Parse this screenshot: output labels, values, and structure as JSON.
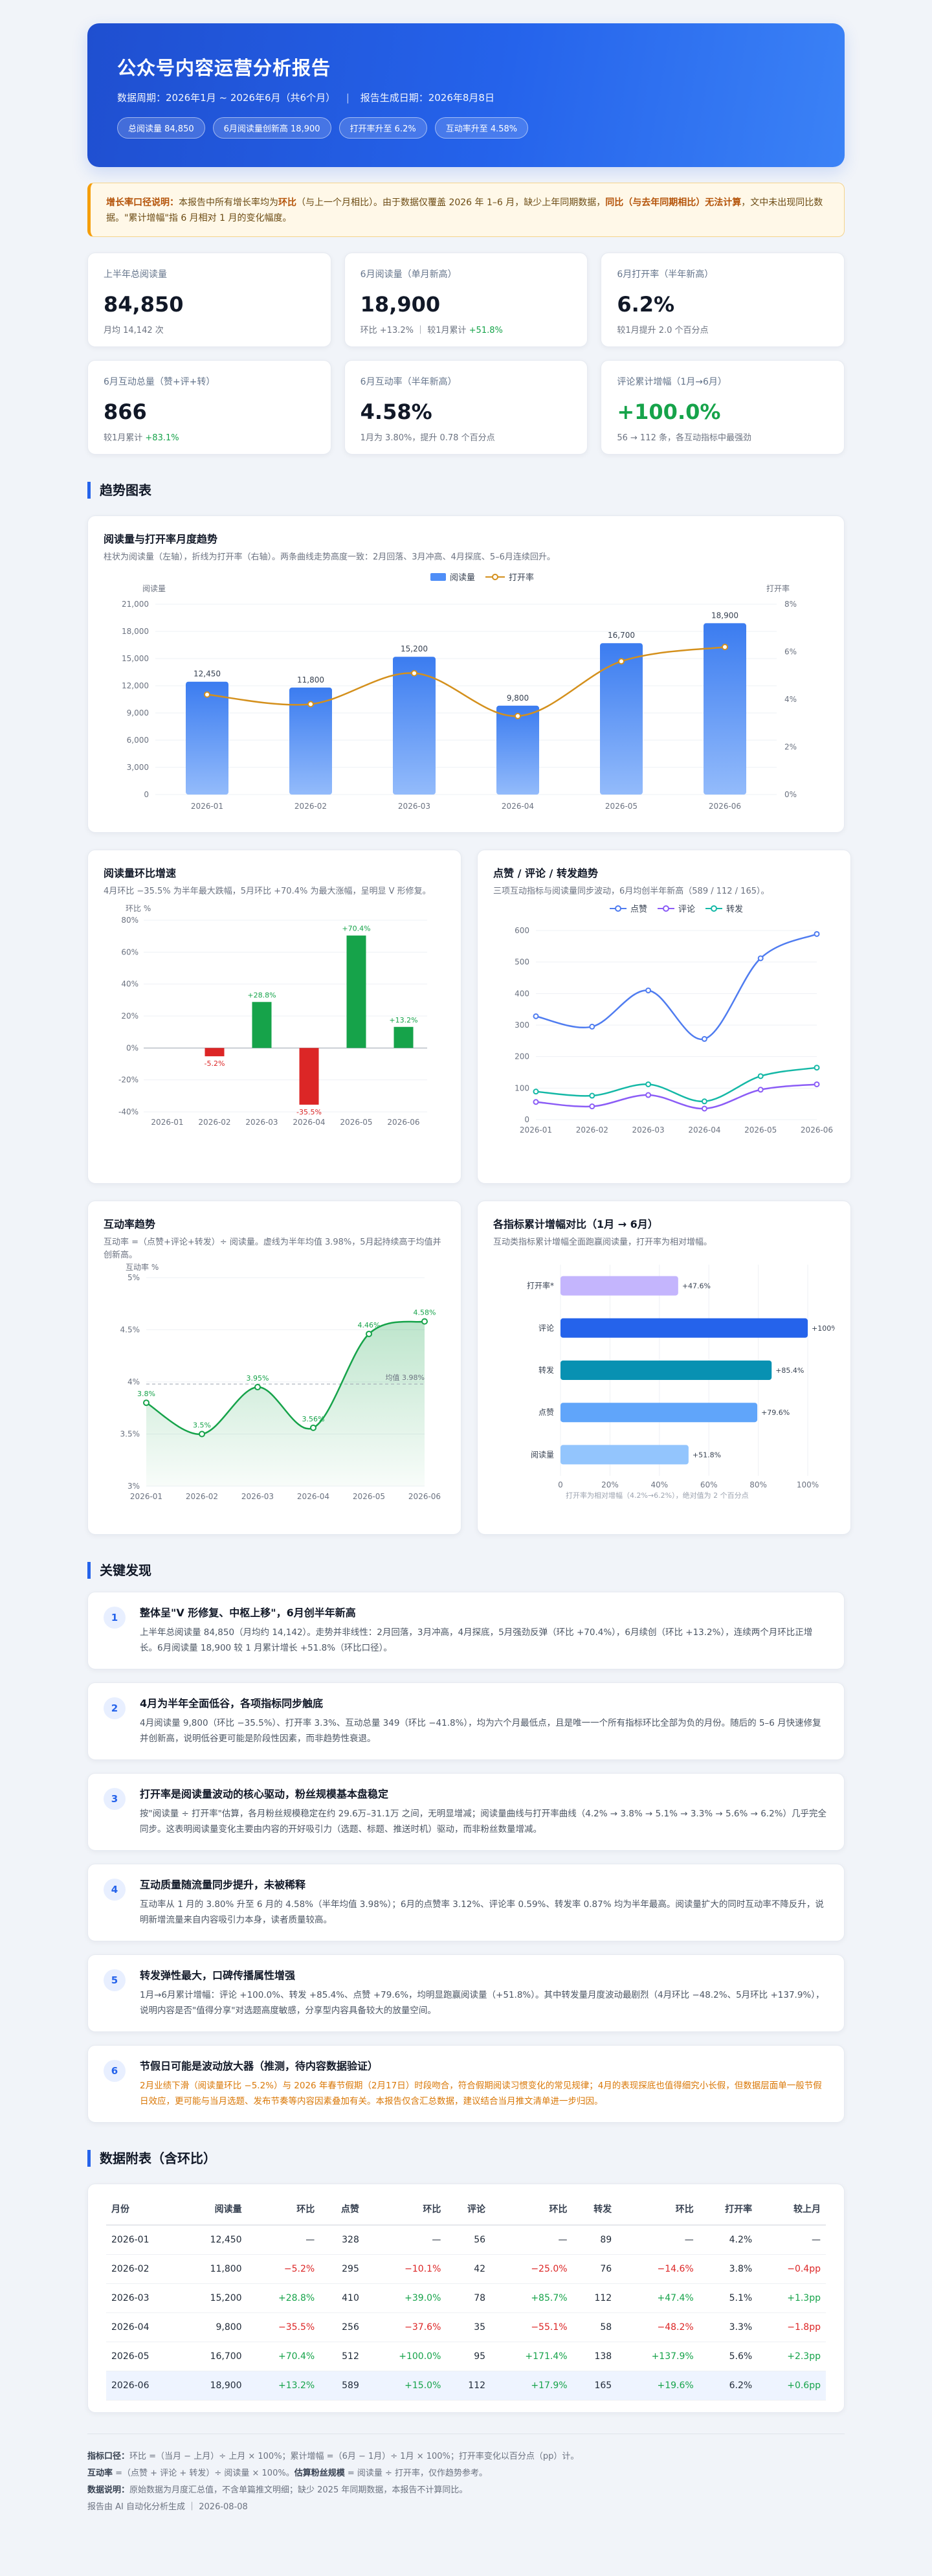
{
  "header": {
    "title": "公众号内容运营分析报告",
    "period": "数据周期：2026年1月 ~ 2026年6月（共6个月）",
    "generated": "报告生成日期：2026年8月8日",
    "pills": [
      "总阅读量 84,850",
      "6月阅读量创新高 18,900",
      "打开率升至 6.2%",
      "互动率升至 4.58%"
    ]
  },
  "note": {
    "lead": "增长率口径说明：",
    "text1": "本报告中所有增长率均为",
    "bold1": "环比",
    "text2": "（与上一个月相比）。由于数据仅覆盖 2026 年 1–6 月，缺少上年同期数据，",
    "bold2": "同比（与去年同期相比）无法计算",
    "text3": "，文中未出现同比数据。\"累计增幅\"指 6 月相对 1 月的变化幅度。"
  },
  "kpis": [
    {
      "label": "上半年总阅读量",
      "value": "84,850",
      "sub": "月均 14,142 次",
      "sub_green": ""
    },
    {
      "label": "6月阅读量（单月新高）",
      "value": "18,900",
      "sub": "环比 +13.2% ｜ 较1月累计 ",
      "sub_green": "+51.8%"
    },
    {
      "label": "6月打开率（半年新高）",
      "value": "6.2%",
      "sub": "较1月提升 2.0 个百分点",
      "sub_green": ""
    },
    {
      "label": "6月互动总量（赞+评+转）",
      "value": "866",
      "sub": "较1月累计 ",
      "sub_green": "+83.1%"
    },
    {
      "label": "6月互动率（半年新高）",
      "value": "4.58%",
      "sub": "1月为 3.80%，提升 0.78 个百分点",
      "sub_green": ""
    },
    {
      "label": "评论累计增幅（1月→6月）",
      "value": "+100.0%",
      "sub": "56 → 112 条，各互动指标中最强劲",
      "sub_green": ""
    }
  ],
  "sections": {
    "trend": "趋势图表",
    "findings": "关键发现",
    "table": "数据附表（含环比）"
  },
  "chart1": {
    "title": "阅读量与打开率月度趋势",
    "desc": "柱状为阅读量（左轴），折线为打开率（右轴）。两条曲线走势高度一致：2月回落、3月冲高、4月探底、5–6月连续回升。",
    "legend": [
      "阅读量",
      "打开率"
    ],
    "yl_label": "阅读量",
    "yr_label": "打开率"
  },
  "chart2": {
    "title": "阅读量环比增速",
    "desc": "4月环比 −35.5% 为半年最大跌幅，5月环比 +70.4% 为最大涨幅，呈明显 V 形修复。",
    "ylabel": "环比 %"
  },
  "chart3": {
    "title": "点赞 / 评论 / 转发趋势",
    "desc": "三项互动指标与阅读量同步波动，6月均创半年新高（589 / 112 / 165）。",
    "legend": [
      "点赞",
      "评论",
      "转发"
    ]
  },
  "chart4": {
    "title": "互动率趋势",
    "desc": "互动率 =（点赞+评论+转发）÷ 阅读量。虚线为半年均值 3.98%，5月起持续高于均值并创新高。",
    "ylabel": "互动率 %",
    "avg_label": "均值 3.98%"
  },
  "chart5": {
    "title": "各指标累计增幅对比（1月 → 6月）",
    "desc": "互动类指标累计增幅全面跑赢阅读量，打开率为相对增幅。",
    "footnote": "打开率为相对增幅（4.2%→6.2%），绝对值为 2 个百分点"
  },
  "chart_data": [
    {
      "type": "bar",
      "title": "阅读量与打开率月度趋势",
      "categories": [
        "2026-01",
        "2026-02",
        "2026-03",
        "2026-04",
        "2026-05",
        "2026-06"
      ],
      "series": [
        {
          "name": "阅读量",
          "type": "bar",
          "axis": "left",
          "values": [
            12450,
            11800,
            15200,
            9800,
            16700,
            18900
          ],
          "color": "#4f8ef7"
        },
        {
          "name": "打开率",
          "type": "line",
          "axis": "right",
          "values": [
            4.2,
            3.8,
            5.1,
            3.3,
            5.6,
            6.2
          ],
          "color": "#d4901c"
        }
      ],
      "ylim_left": [
        0,
        21000
      ],
      "yticks_left": [
        "0",
        "3,000",
        "6,000",
        "9,000",
        "12,000",
        "15,000",
        "18,000",
        "21,000"
      ],
      "ylim_right": [
        0,
        8
      ],
      "yticks_right": [
        "0%",
        "2%",
        "4%",
        "6%",
        "8%"
      ],
      "data_labels": [
        "12,450",
        "11,800",
        "15,200",
        "9,800",
        "16,700",
        "18,900"
      ],
      "ylabel": "阅读量",
      "ylabel_right": "打开率",
      "legend": "top-center",
      "grid": true
    },
    {
      "type": "bar",
      "title": "阅读量环比增速",
      "categories": [
        "2026-01",
        "2026-02",
        "2026-03",
        "2026-04",
        "2026-05",
        "2026-06"
      ],
      "values": [
        0,
        -5.2,
        28.8,
        -35.5,
        70.4,
        13.2
      ],
      "data_labels": [
        "",
        "-5.2%",
        "+28.8%",
        "-35.5%",
        "+70.4%",
        "+13.2%"
      ],
      "ylim": [
        -40,
        80
      ],
      "yticks": [
        "-40%",
        "-20%",
        "0%",
        "20%",
        "40%",
        "60%",
        "80%"
      ],
      "ylabel": "环比 %",
      "colors": {
        "up": "#16a34a",
        "down": "#dc2626"
      },
      "grid": true
    },
    {
      "type": "line",
      "title": "点赞 / 评论 / 转发趋势",
      "categories": [
        "2026-01",
        "2026-02",
        "2026-03",
        "2026-04",
        "2026-05",
        "2026-06"
      ],
      "series": [
        {
          "name": "点赞",
          "values": [
            328,
            295,
            410,
            256,
            512,
            589
          ],
          "color": "#4f7cf0"
        },
        {
          "name": "评论",
          "values": [
            56,
            42,
            78,
            35,
            95,
            112
          ],
          "color": "#8b5cf6"
        },
        {
          "name": "转发",
          "values": [
            89,
            76,
            112,
            58,
            138,
            165
          ],
          "color": "#14b8a6"
        }
      ],
      "ylim": [
        0,
        600
      ],
      "yticks": [
        "0",
        "100",
        "200",
        "300",
        "400",
        "500",
        "600"
      ],
      "legend": "top-center",
      "grid": true
    },
    {
      "type": "area",
      "title": "互动率趋势",
      "categories": [
        "2026-01",
        "2026-02",
        "2026-03",
        "2026-04",
        "2026-05",
        "2026-06"
      ],
      "values": [
        3.8,
        3.5,
        3.95,
        3.56,
        4.46,
        4.58
      ],
      "data_labels": [
        "3.8%",
        "3.5%",
        "3.95%",
        "3.56%",
        "4.46%",
        "4.58%"
      ],
      "ylim": [
        3,
        5
      ],
      "yticks": [
        "3%",
        "3.5%",
        "4%",
        "4.5%",
        "5%"
      ],
      "ylabel": "互动率 %",
      "average": 3.98,
      "color": "#16a34a",
      "grid": true
    },
    {
      "type": "bar",
      "orientation": "horizontal",
      "title": "各指标累计增幅对比（1月 → 6月）",
      "categories": [
        "打开率*",
        "评论",
        "转发",
        "点赞",
        "阅读量"
      ],
      "values": [
        47.6,
        100.0,
        85.4,
        79.6,
        51.8
      ],
      "data_labels": [
        "+47.6%",
        "+100%",
        "+85.4%",
        "+79.6%",
        "+51.8%"
      ],
      "colors": [
        "#c4b5fd",
        "#2563eb",
        "#0891b2",
        "#60a5fa",
        "#93c5fd"
      ],
      "xlim": [
        0,
        100
      ],
      "xticks": [
        "0",
        "20%",
        "40%",
        "60%",
        "80%",
        "100%"
      ],
      "grid": true
    }
  ],
  "findings": [
    {
      "num": "1",
      "title": "整体呈\"V 形修复、中枢上移\"，6月创半年新高",
      "text": "上半年总阅读量 84,850（月均约 14,142）。走势并非线性：2月回落，3月冲高，4月探底，5月强劲反弹（环比 +70.4%），6月续创（环比 +13.2%），连续两个月环比正增长。6月阅读量 18,900 较 1 月累计增长 +51.8%（环比口径）。",
      "warn": false
    },
    {
      "num": "2",
      "title": "4月为半年全面低谷，各项指标同步触底",
      "text": "4月阅读量 9,800（环比 −35.5%）、打开率 3.3%、互动总量 349（环比 −41.8%），均为六个月最低点，且是唯一一个所有指标环比全部为负的月份。随后的 5–6 月快速修复并创新高，说明低谷更可能是阶段性因素，而非趋势性衰退。",
      "warn": false
    },
    {
      "num": "3",
      "title": "打开率是阅读量波动的核心驱动，粉丝规模基本盘稳定",
      "text": "按\"阅读量 ÷ 打开率\"估算，各月粉丝规模稳定在约 29.6万–31.1万 之间，无明显增减；阅读量曲线与打开率曲线（4.2% → 3.8% → 5.1% → 3.3% → 5.6% → 6.2%）几乎完全同步。这表明阅读量变化主要由内容的开好吸引力（选题、标题、推送时机）驱动，而非粉丝数量增减。",
      "warn": false
    },
    {
      "num": "4",
      "title": "互动质量随流量同步提升，未被稀释",
      "text": "互动率从 1 月的 3.80% 升至 6 月的 4.58%（半年均值 3.98%）；6月的点赞率 3.12%、评论率 0.59%、转发率 0.87% 均为半年最高。阅读量扩大的同时互动率不降反升，说明新增流量来自内容吸引力本身，读者质量较高。",
      "warn": false
    },
    {
      "num": "5",
      "title": "转发弹性最大，口碑传播属性增强",
      "text": "1月→6月累计增幅：评论 +100.0%、转发 +85.4%、点赞 +79.6%，均明显跑赢阅读量（+51.8%）。其中转发量月度波动最剧烈（4月环比 −48.2%、5月环比 +137.9%），说明内容是否\"值得分享\"对选题高度敏感，分享型内容具备较大的放量空间。",
      "warn": false
    },
    {
      "num": "6",
      "title": "节假日可能是波动放大器（推测，待内容数据验证）",
      "text": "2月业绩下滑（阅读量环比 −5.2%）与 2026 年春节假期（2月17日）时段吻合，符合假期阅读习惯变化的常见规律；4月的表现探底也值得细究小长假，但数据层面单一般节假日效应，更可能与当月选题、发布节奏等内容因素叠加有关。本报告仅含汇总数据，建议结合当月推文清单进一步归因。",
      "warn": true
    }
  ],
  "table": {
    "headers": [
      "月份",
      "阅读量",
      "环比",
      "点赞",
      "环比",
      "评论",
      "环比",
      "转发",
      "环比",
      "打开率",
      "较上月"
    ],
    "rows": [
      [
        "2026-01",
        "12,450",
        "—",
        "328",
        "—",
        "56",
        "—",
        "89",
        "—",
        "4.2%",
        "—"
      ],
      [
        "2026-02",
        "11,800",
        "−5.2%",
        "295",
        "−10.1%",
        "42",
        "−25.0%",
        "76",
        "−14.6%",
        "3.8%",
        "−0.4pp"
      ],
      [
        "2026-03",
        "15,200",
        "+28.8%",
        "410",
        "+39.0%",
        "78",
        "+85.7%",
        "112",
        "+47.4%",
        "5.1%",
        "+1.3pp"
      ],
      [
        "2026-04",
        "9,800",
        "−35.5%",
        "256",
        "−37.6%",
        "35",
        "−55.1%",
        "58",
        "−48.2%",
        "3.3%",
        "−1.8pp"
      ],
      [
        "2026-05",
        "16,700",
        "+70.4%",
        "512",
        "+100.0%",
        "95",
        "+171.4%",
        "138",
        "+137.9%",
        "5.6%",
        "+2.3pp"
      ],
      [
        "2026-06",
        "18,900",
        "+13.2%",
        "589",
        "+15.0%",
        "112",
        "+17.9%",
        "165",
        "+19.6%",
        "6.2%",
        "+0.6pp"
      ]
    ]
  },
  "footer": {
    "l1_b": "指标口径：",
    "l1": "环比 =（当月 − 上月）÷ 上月 × 100%；累计增幅 =（6月 − 1月）÷ 1月 × 100%；打开率变化以百分点（pp）计。",
    "l2_b": "互动率",
    "l2": " =（点赞 + 评论 + 转发）÷ 阅读量 × 100%。",
    "l2b_b": "估算粉丝规模",
    "l2b": " = 阅读量 ÷ 打开率，仅作趋势参考。",
    "l3_b": "数据说明：",
    "l3": "原始数据为月度汇总值，不含单篇推文明细；缺少 2025 年同期数据，本报告不计算同比。",
    "l4": "报告由 AI 自动化分析生成 ｜ 2026-08-08"
  }
}
